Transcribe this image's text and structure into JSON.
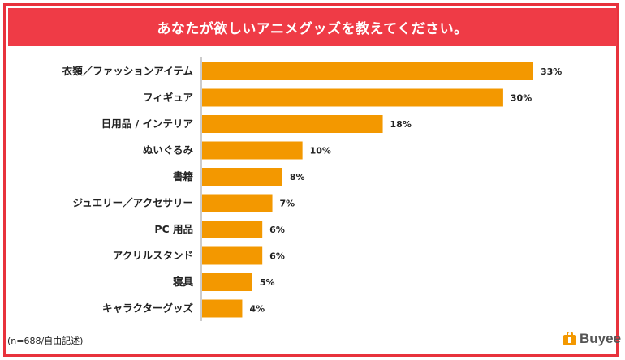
{
  "header": {
    "title": "あなたが欲しいアニメグッズを教えてください。"
  },
  "footer": {
    "note": "(n=688/自由記述)",
    "brand": "Buyee"
  },
  "colors": {
    "bar": "#f39800",
    "title_bg": "#ef3b46",
    "frame": "#e8323c",
    "axis": "#999999"
  },
  "chart_data": {
    "type": "bar",
    "orientation": "horizontal",
    "title": "あなたが欲しいアニメグッズを教えてください。",
    "categories": [
      "衣類／ファッションアイテム",
      "フィギュア",
      "日用品 / インテリア",
      "ぬいぐるみ",
      "書籍",
      "ジュエリー／アクセサリー",
      "PC 用品",
      "アクリルスタンド",
      "寝具",
      "キャラクターグッズ"
    ],
    "values": [
      33,
      30,
      18,
      10,
      8,
      7,
      6,
      6,
      5,
      4
    ],
    "value_labels": [
      "33%",
      "30%",
      "18%",
      "10%",
      "8%",
      "7%",
      "6%",
      "6%",
      "5%",
      "4%"
    ],
    "unit": "%",
    "xlim": [
      0,
      33
    ],
    "grid": false,
    "legend": "none"
  }
}
